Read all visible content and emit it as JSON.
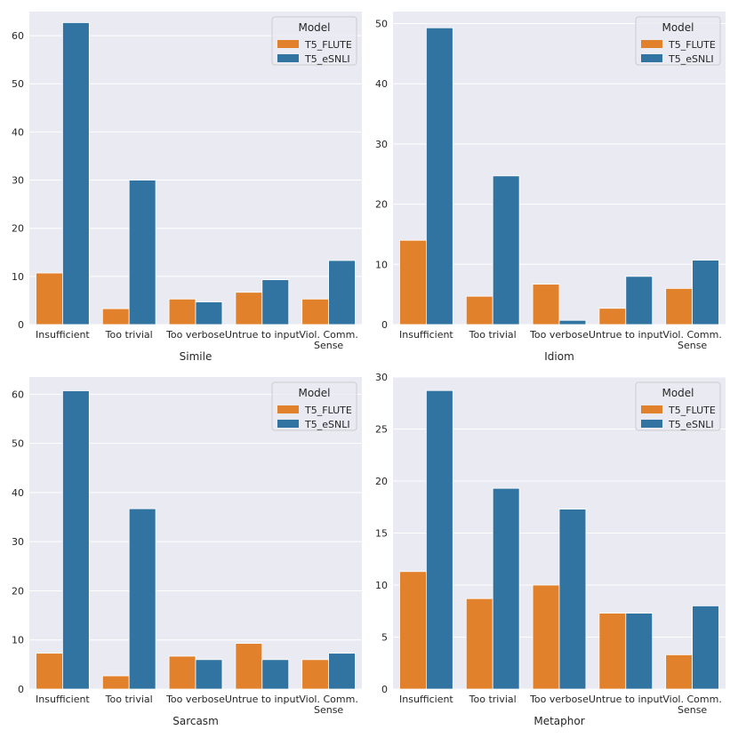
{
  "chart_data": [
    {
      "type": "bar",
      "title": "",
      "xlabel": "Simile",
      "ylabel": "",
      "categories": [
        "Insufficient",
        "Too trivial",
        "Too verbose",
        "Untrue to input",
        "Viol. Comm.\nSense"
      ],
      "ylim": [
        0,
        65
      ],
      "yticks": [
        0,
        10,
        20,
        30,
        40,
        50,
        60
      ],
      "legend": {
        "title": "Model",
        "placement": "top-right"
      },
      "series": [
        {
          "name": "T5_FLUTE",
          "color": "#e1812c",
          "values": [
            10.7,
            3.3,
            5.3,
            6.7,
            5.3
          ]
        },
        {
          "name": "T5_eSNLI",
          "color": "#3274a1",
          "values": [
            62.7,
            30.0,
            4.7,
            9.3,
            13.3
          ]
        }
      ]
    },
    {
      "type": "bar",
      "title": "",
      "xlabel": "Idiom",
      "ylabel": "",
      "categories": [
        "Insufficient",
        "Too trivial",
        "Too verbose",
        "Untrue to input",
        "Viol. Comm.\nSense"
      ],
      "ylim": [
        0,
        52
      ],
      "yticks": [
        0,
        10,
        20,
        30,
        40,
        50
      ],
      "legend": {
        "title": "Model",
        "placement": "top-right"
      },
      "series": [
        {
          "name": "T5_FLUTE",
          "color": "#e1812c",
          "values": [
            14.0,
            4.7,
            6.7,
            2.7,
            6.0
          ]
        },
        {
          "name": "T5_eSNLI",
          "color": "#3274a1",
          "values": [
            49.3,
            24.7,
            0.7,
            8.0,
            10.7
          ]
        }
      ]
    },
    {
      "type": "bar",
      "title": "",
      "xlabel": "Sarcasm",
      "ylabel": "",
      "categories": [
        "Insufficient",
        "Too trivial",
        "Too verbose",
        "Untrue to input",
        "Viol. Comm.\nSense"
      ],
      "ylim": [
        0,
        63.5
      ],
      "yticks": [
        0,
        10,
        20,
        30,
        40,
        50,
        60
      ],
      "legend": {
        "title": "Model",
        "placement": "top-right"
      },
      "series": [
        {
          "name": "T5_FLUTE",
          "color": "#e1812c",
          "values": [
            7.3,
            2.7,
            6.7,
            9.3,
            6.0
          ]
        },
        {
          "name": "T5_eSNLI",
          "color": "#3274a1",
          "values": [
            60.7,
            36.7,
            6.0,
            6.0,
            7.3
          ]
        }
      ]
    },
    {
      "type": "bar",
      "title": "",
      "xlabel": "Metaphor",
      "ylabel": "",
      "categories": [
        "Insufficient",
        "Too trivial",
        "Too verbose",
        "Untrue to input",
        "Viol. Comm.\nSense"
      ],
      "ylim": [
        0,
        30
      ],
      "yticks": [
        0,
        5,
        10,
        15,
        20,
        25,
        30
      ],
      "legend": {
        "title": "Model",
        "placement": "top-right"
      },
      "series": [
        {
          "name": "T5_FLUTE",
          "color": "#e1812c",
          "values": [
            11.3,
            8.7,
            10.0,
            7.3,
            3.3
          ]
        },
        {
          "name": "T5_eSNLI",
          "color": "#3274a1",
          "values": [
            28.7,
            19.3,
            17.3,
            7.3,
            8.0
          ]
        }
      ]
    }
  ]
}
